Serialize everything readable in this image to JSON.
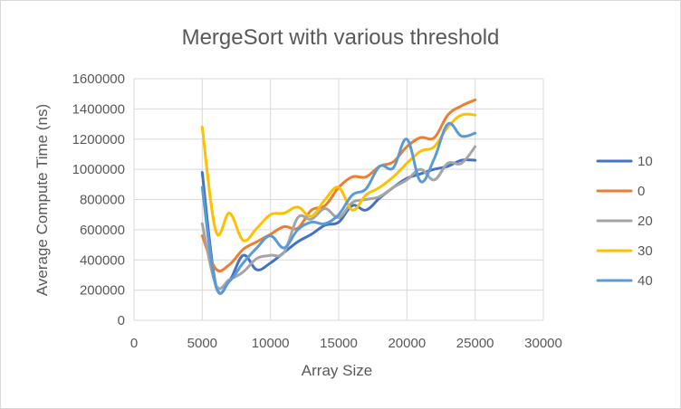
{
  "chart_data": {
    "type": "line",
    "title": "MergeSort with various threshold",
    "xlabel": "Array Size",
    "ylabel": "Average Compute Time (ns)",
    "xlim": [
      0,
      30000
    ],
    "ylim": [
      0,
      1600000
    ],
    "x_ticks": [
      "0",
      "5000",
      "10000",
      "15000",
      "20000",
      "25000",
      "30000"
    ],
    "y_ticks": [
      "0",
      "200000",
      "400000",
      "600000",
      "800000",
      "1000000",
      "1200000",
      "1400000",
      "1600000"
    ],
    "grid": true,
    "legend_position": "right",
    "x": [
      5000,
      6000,
      7000,
      8000,
      9000,
      10000,
      11000,
      12000,
      13000,
      14000,
      15000,
      16000,
      17000,
      18000,
      19000,
      20000,
      21000,
      22000,
      23000,
      24000,
      25000
    ],
    "series": [
      {
        "name": "10",
        "color": "#4472c4",
        "values": [
          980000,
          235000,
          265000,
          430000,
          335000,
          380000,
          450000,
          520000,
          570000,
          630000,
          650000,
          760000,
          730000,
          810000,
          880000,
          940000,
          970000,
          1000000,
          1020000,
          1060000,
          1060000
        ]
      },
      {
        "name": "0",
        "color": "#ed7d31",
        "values": [
          560000,
          340000,
          370000,
          470000,
          520000,
          570000,
          620000,
          610000,
          730000,
          760000,
          880000,
          950000,
          950000,
          1020000,
          1050000,
          1150000,
          1210000,
          1210000,
          1360000,
          1420000,
          1460000
        ]
      },
      {
        "name": "20",
        "color": "#a5a5a5",
        "values": [
          640000,
          235000,
          270000,
          320000,
          410000,
          430000,
          450000,
          680000,
          670000,
          740000,
          680000,
          780000,
          800000,
          820000,
          880000,
          930000,
          1000000,
          930000,
          1040000,
          1040000,
          1150000
        ]
      },
      {
        "name": "30",
        "color": "#ffc000",
        "values": [
          1280000,
          590000,
          710000,
          530000,
          610000,
          700000,
          710000,
          750000,
          690000,
          800000,
          880000,
          730000,
          830000,
          880000,
          950000,
          1040000,
          1120000,
          1150000,
          1280000,
          1360000,
          1360000
        ]
      },
      {
        "name": "40",
        "color": "#5b9bd5",
        "values": [
          880000,
          225000,
          260000,
          380000,
          480000,
          560000,
          480000,
          600000,
          650000,
          640000,
          700000,
          830000,
          870000,
          1020000,
          1010000,
          1200000,
          920000,
          1070000,
          1300000,
          1220000,
          1240000
        ]
      }
    ]
  }
}
